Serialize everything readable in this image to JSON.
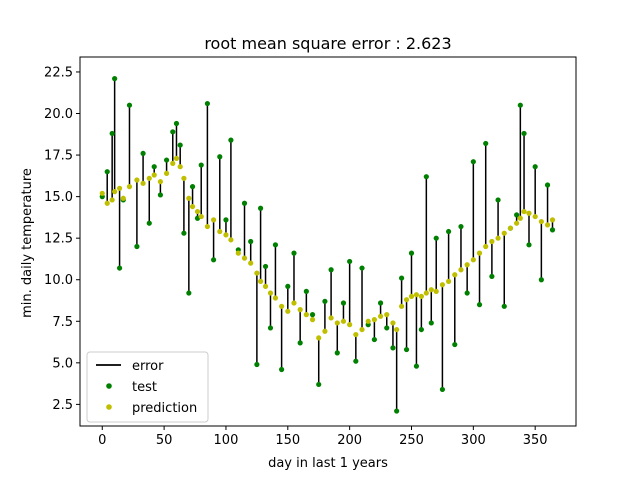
{
  "chart_data": {
    "type": "scatter",
    "title": "root mean square error : 2.623",
    "xlabel": "day in last 1 years",
    "ylabel": "min. daily temperature",
    "xlim": [
      -18,
      383
    ],
    "ylim": [
      1.2,
      23.4
    ],
    "xticks": [
      0,
      50,
      100,
      150,
      200,
      250,
      300,
      350
    ],
    "yticks": [
      2.5,
      5.0,
      7.5,
      10.0,
      12.5,
      15.0,
      17.5,
      20.0,
      22.5
    ],
    "xtick_labels": [
      "0",
      "50",
      "100",
      "150",
      "200",
      "250",
      "300",
      "350"
    ],
    "ytick_labels": [
      "2.5",
      "5.0",
      "7.5",
      "10.0",
      "12.5",
      "15.0",
      "17.5",
      "20.0",
      "22.5"
    ],
    "grid": false,
    "legend": {
      "position": "lower-left",
      "entries": [
        {
          "label": "error",
          "marker": "line",
          "color": "#000000"
        },
        {
          "label": "test",
          "marker": "dot",
          "color": "#008000"
        },
        {
          "label": "prediction",
          "marker": "dot",
          "color": "#bfbf00"
        }
      ]
    },
    "series": [
      {
        "name": "test",
        "color": "#008000",
        "x": [
          0,
          4,
          8,
          10,
          14,
          17,
          22,
          28,
          33,
          38,
          42,
          47,
          52,
          57,
          60,
          63,
          66,
          70,
          73,
          77,
          80,
          85,
          90,
          95,
          100,
          104,
          110,
          115,
          120,
          125,
          128,
          132,
          136,
          140,
          145,
          150,
          155,
          160,
          165,
          170,
          175,
          180,
          185,
          190,
          195,
          200,
          205,
          210,
          215,
          220,
          225,
          230,
          235,
          238,
          242,
          246,
          250,
          254,
          258,
          262,
          266,
          270,
          275,
          280,
          285,
          290,
          295,
          300,
          305,
          310,
          315,
          320,
          325,
          330,
          335,
          338,
          341,
          345,
          350,
          355,
          360,
          364
        ],
        "y": [
          15.0,
          16.5,
          18.8,
          22.1,
          10.7,
          14.8,
          20.5,
          12.0,
          17.6,
          13.4,
          16.8,
          15.1,
          17.2,
          18.9,
          19.4,
          18.1,
          12.8,
          9.2,
          15.6,
          13.7,
          16.9,
          20.6,
          11.2,
          17.4,
          13.6,
          18.4,
          11.8,
          14.6,
          12.3,
          4.9,
          14.3,
          10.8,
          7.1,
          12.1,
          4.6,
          9.6,
          11.6,
          6.2,
          9.3,
          7.9,
          3.7,
          8.7,
          10.6,
          5.6,
          8.6,
          11.1,
          5.1,
          10.7,
          7.3,
          6.4,
          8.6,
          7.1,
          5.9,
          2.1,
          10.1,
          5.8,
          11.6,
          4.8,
          7.0,
          16.2,
          7.4,
          12.5,
          3.4,
          12.9,
          6.1,
          13.2,
          9.2,
          17.1,
          8.5,
          18.2,
          10.2,
          14.8,
          8.4,
          13.1,
          13.9,
          20.5,
          18.8,
          12.1,
          16.8,
          10.0,
          15.7,
          13.0
        ]
      },
      {
        "name": "prediction",
        "color": "#bfbf00",
        "x": [
          0,
          4,
          8,
          10,
          14,
          17,
          22,
          28,
          33,
          38,
          42,
          47,
          52,
          57,
          60,
          63,
          66,
          70,
          73,
          77,
          80,
          85,
          90,
          95,
          100,
          104,
          110,
          115,
          120,
          125,
          128,
          132,
          136,
          140,
          145,
          150,
          155,
          160,
          165,
          170,
          175,
          180,
          185,
          190,
          195,
          200,
          205,
          210,
          215,
          220,
          225,
          230,
          235,
          238,
          242,
          246,
          250,
          254,
          258,
          262,
          266,
          270,
          275,
          280,
          285,
          290,
          295,
          300,
          305,
          310,
          315,
          320,
          325,
          330,
          335,
          338,
          341,
          345,
          350,
          355,
          360,
          364
        ],
        "y": [
          15.2,
          14.6,
          14.8,
          15.3,
          15.5,
          14.9,
          15.6,
          16.0,
          15.8,
          16.1,
          16.3,
          15.9,
          16.4,
          17.0,
          17.3,
          16.8,
          16.1,
          14.9,
          14.4,
          14.1,
          13.8,
          13.2,
          13.6,
          12.9,
          12.7,
          12.4,
          11.6,
          11.3,
          11.0,
          10.4,
          9.9,
          9.6,
          9.2,
          8.9,
          8.4,
          8.1,
          8.6,
          8.2,
          7.9,
          7.6,
          6.5,
          6.9,
          7.7,
          7.4,
          7.5,
          7.3,
          6.7,
          7.0,
          7.5,
          7.6,
          7.8,
          7.9,
          7.4,
          7.0,
          8.4,
          8.8,
          9.0,
          9.1,
          9.0,
          9.2,
          9.4,
          9.3,
          9.7,
          9.9,
          10.3,
          10.6,
          10.9,
          11.2,
          11.6,
          12.0,
          12.3,
          12.5,
          12.8,
          13.1,
          13.4,
          13.7,
          14.1,
          14.0,
          13.8,
          13.5,
          13.3,
          13.6
        ]
      }
    ]
  }
}
